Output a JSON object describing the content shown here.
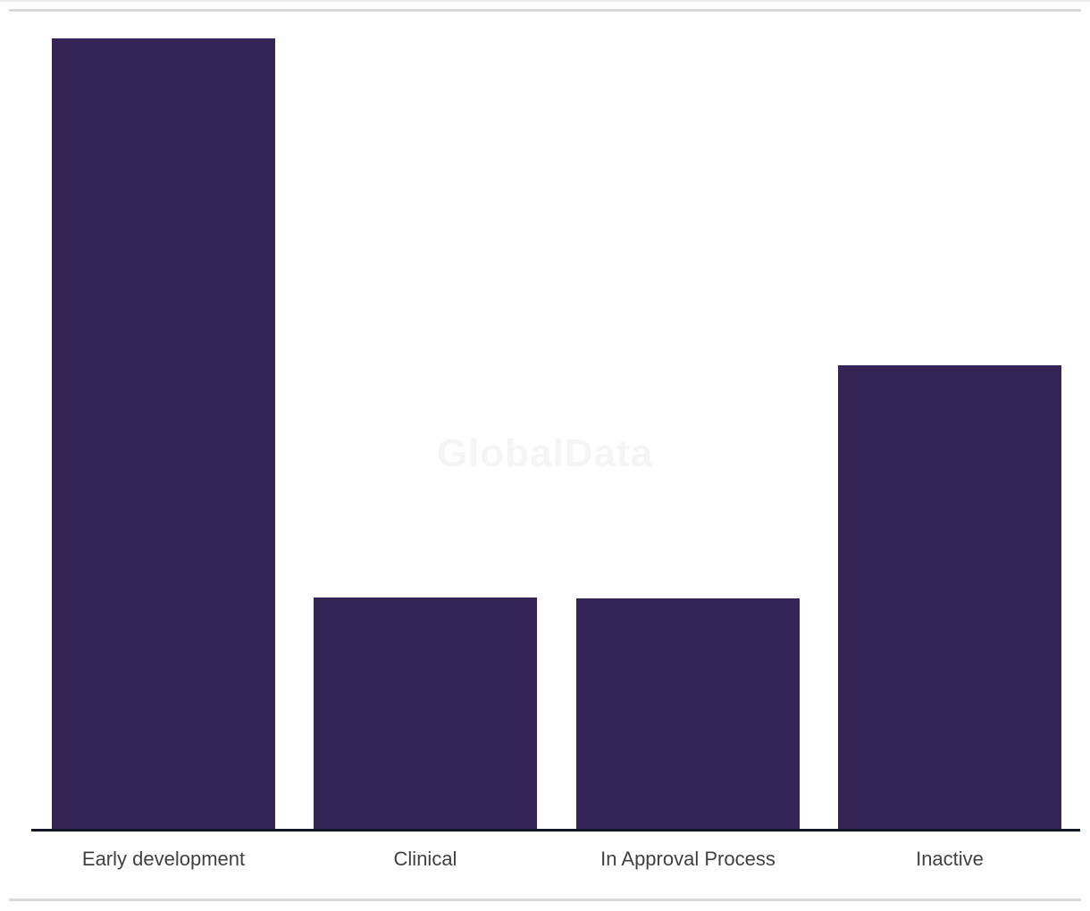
{
  "page": {
    "watermark_text": "GlobalData"
  },
  "colors": {
    "bar": "#352456",
    "axis": "#131722",
    "divider": "#d9d9d9",
    "hairline": "#ececec",
    "label_text": "#414141",
    "watermark_text": "#f5f5f5",
    "background": "#ffffff"
  },
  "chart_data": {
    "type": "bar",
    "title": "",
    "xlabel": "",
    "ylabel": "",
    "categories": [
      "Early development",
      "Clinical",
      "In Approval Process",
      "Inactive"
    ],
    "values": [
      886,
      260,
      259,
      520
    ],
    "value_axis_visible": false,
    "value_scale_note": "no numeric axis or data labels shown; values are measured bar heights in screen pixels (relative magnitudes)",
    "ylim": [
      0,
      929
    ],
    "grid": false,
    "legend": false,
    "bar_color": "#352456",
    "watermark": "GlobalData"
  }
}
